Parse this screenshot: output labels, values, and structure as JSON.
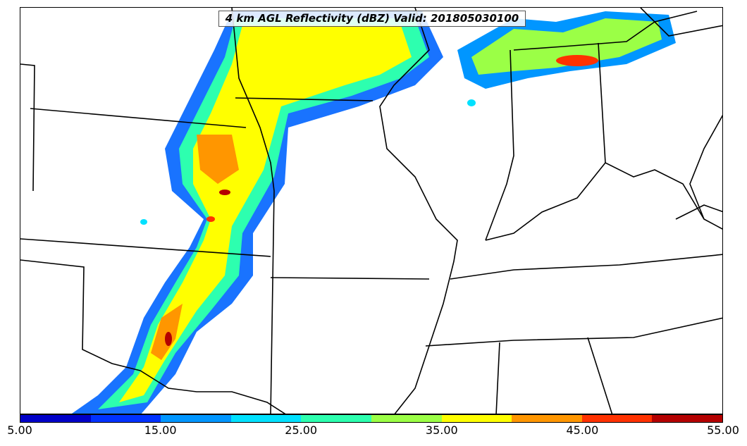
{
  "title": "4 km AGL Reflectivity (dBZ) Valid: 201805030100",
  "colorbar": {
    "min": 5,
    "max": 55,
    "colors": [
      "#0000c8",
      "#0032ff",
      "#0096ff",
      "#00e1ff",
      "#2dffaf",
      "#9bff46",
      "#ffff00",
      "#ff9600",
      "#ff3200",
      "#b40000"
    ],
    "tick_labels": [
      "5.00",
      "15.00",
      "25.00",
      "35.00",
      "45.00",
      "55.00"
    ]
  },
  "map": {
    "background": "#ffffff",
    "boundary_color": "#000000",
    "storm_band": "squall line from upper Midwest southwest to the Texas-Oklahoma region"
  }
}
